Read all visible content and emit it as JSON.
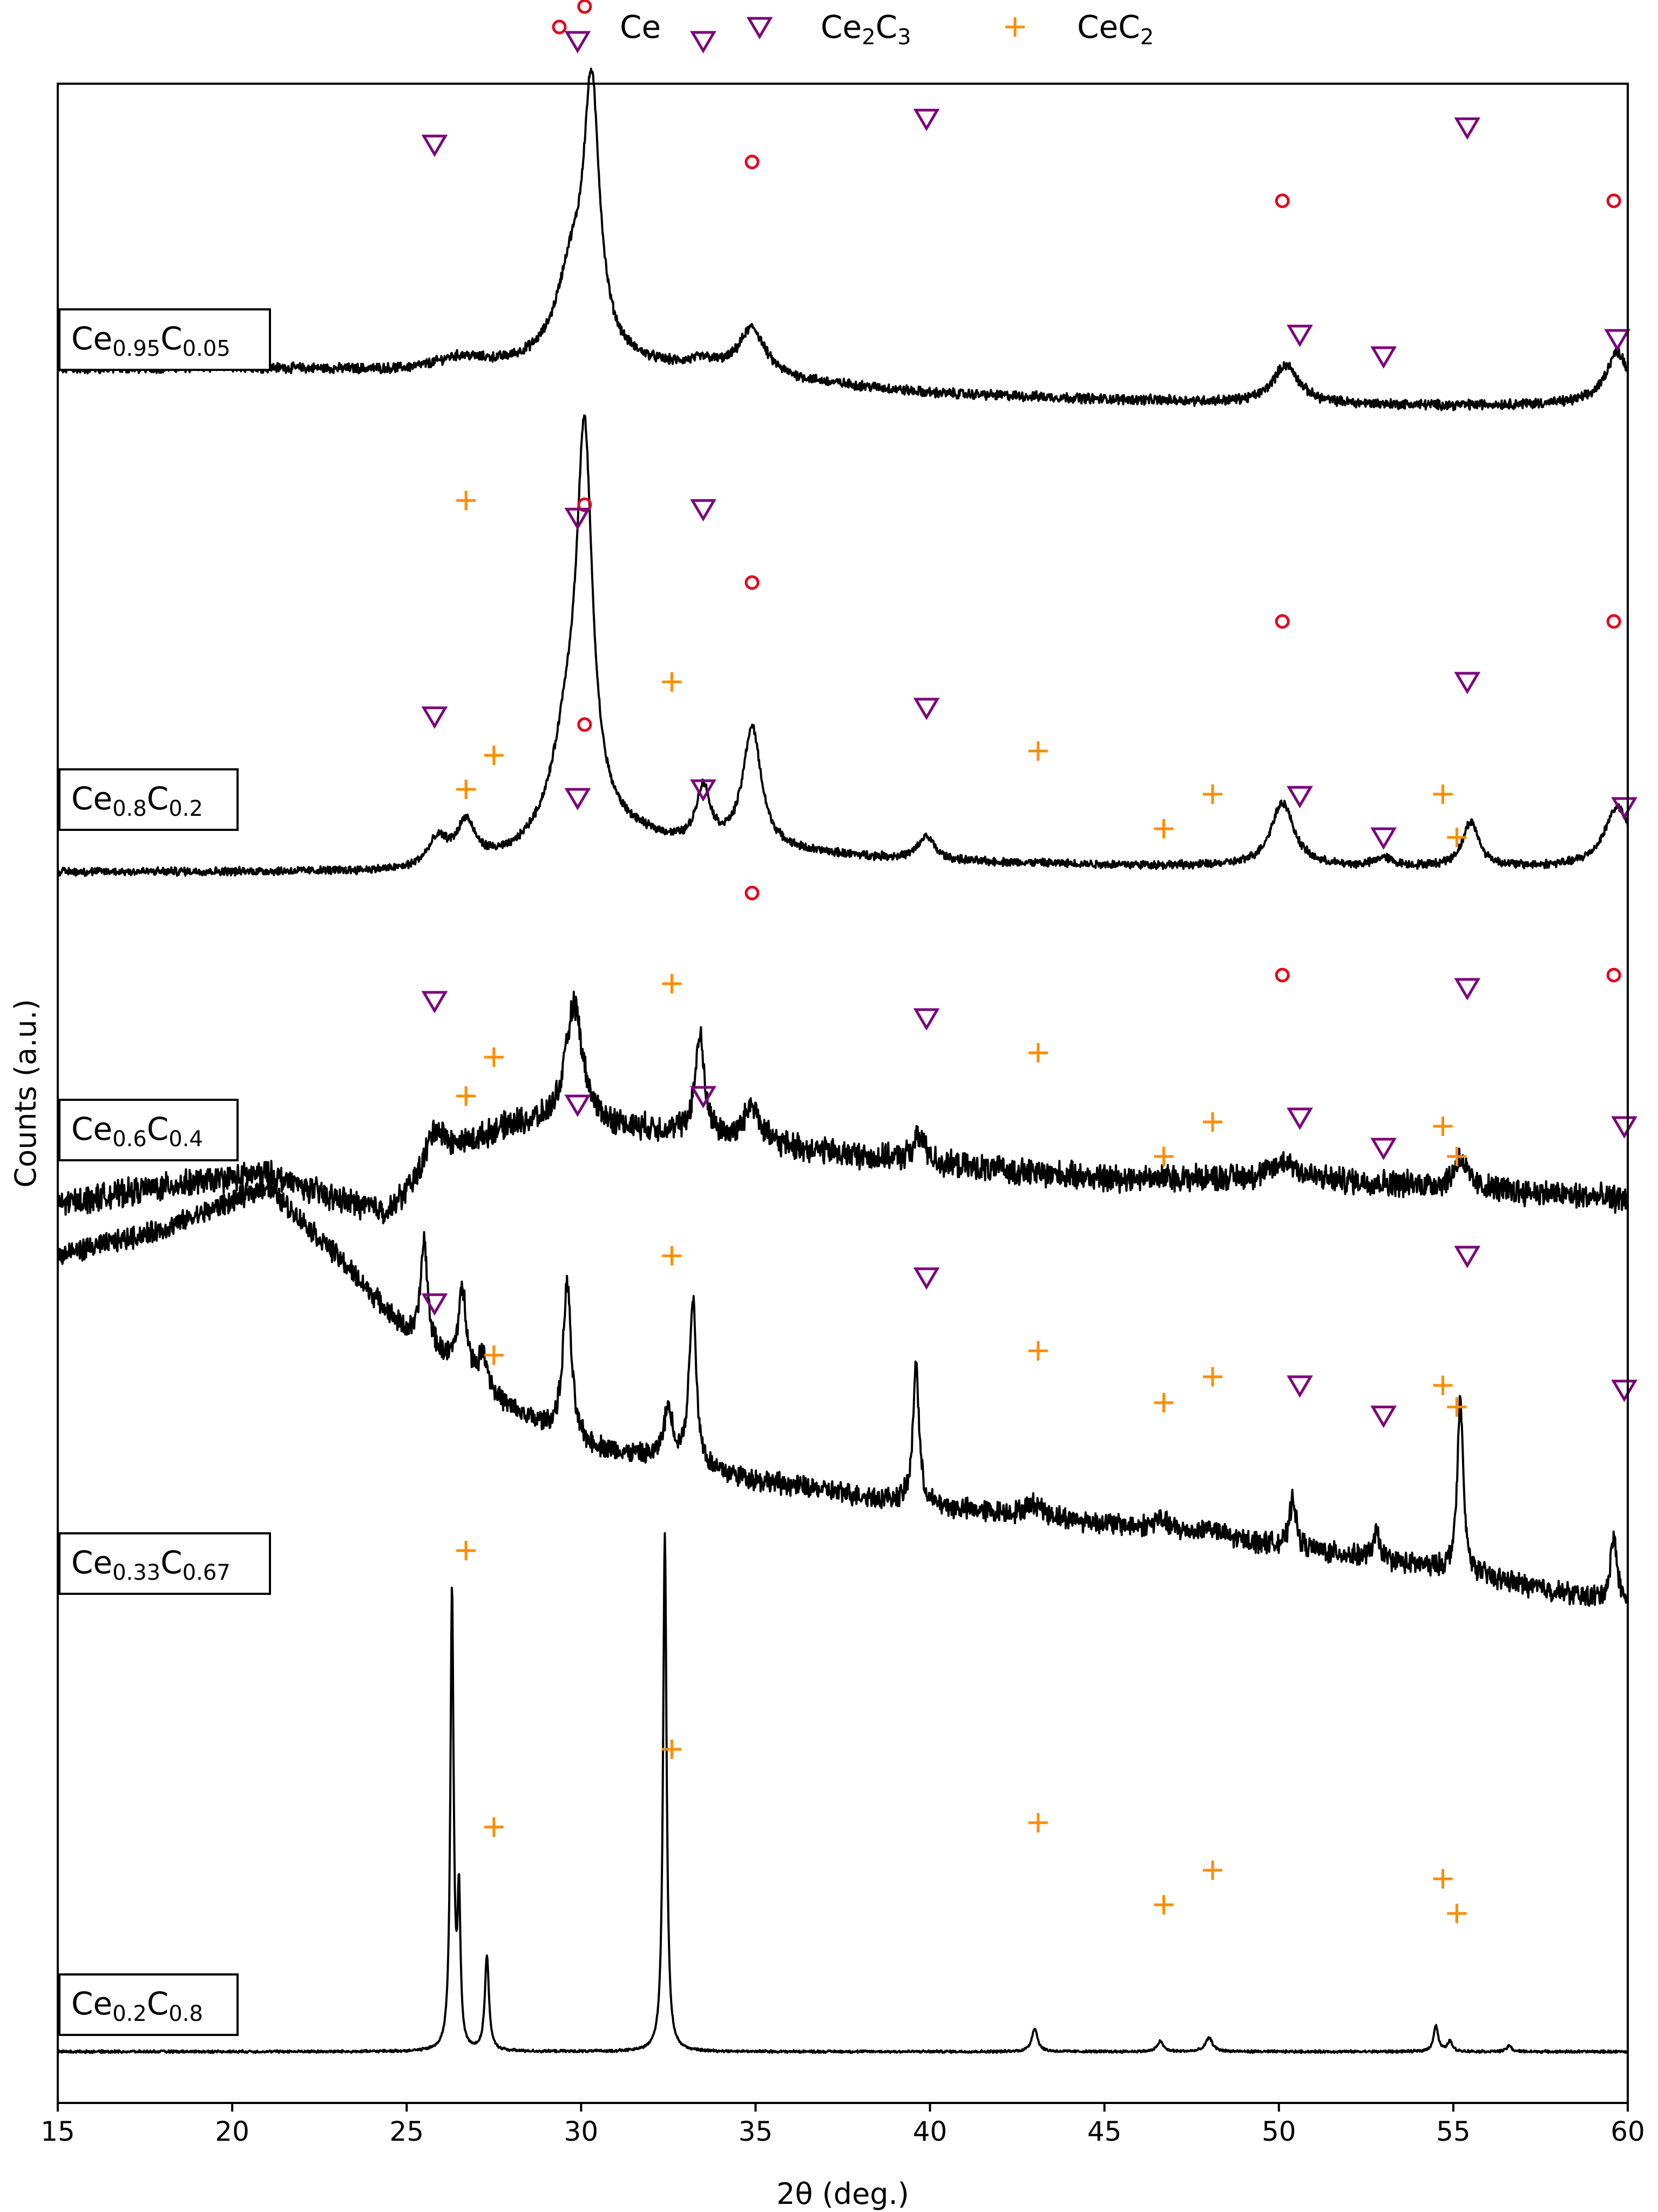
{
  "chart_data": {
    "type": "line",
    "title": "",
    "xlabel": "2θ (deg.)",
    "ylabel": "Counts (a.u.)",
    "xlim": [
      15,
      60
    ],
    "xticks": [
      "15",
      "20",
      "25",
      "30",
      "35",
      "40",
      "45",
      "50",
      "55",
      "60"
    ],
    "yticks": [],
    "legend": {
      "placement": "top-center",
      "entries": [
        {
          "name": "Ce",
          "label_parts": [
            "Ce"
          ],
          "marker": "circle",
          "color": "#e3001b"
        },
        {
          "name": "Ce2C3",
          "label_parts": [
            "Ce",
            "2",
            "C",
            "3"
          ],
          "marker": "triangle-down",
          "color": "#7b007b"
        },
        {
          "name": "CeC2",
          "label_parts": [
            "CeC",
            "2"
          ],
          "marker": "plus",
          "color": "#ff8c00"
        }
      ]
    },
    "colors": {
      "Ce": "#e3001b",
      "Ce2C3": "#7b007b",
      "CeC2": "#ff8c00",
      "trace": "#000000"
    },
    "series": [
      {
        "name": "Ce0.95C0.05",
        "label_parts": [
          "Ce",
          "0.95",
          "C",
          "0.05"
        ],
        "noise": 0.6,
        "baseline": [
          [
            15,
            60
          ],
          [
            20,
            62
          ],
          [
            25,
            58
          ],
          [
            28,
            63
          ],
          [
            30,
            70
          ],
          [
            35,
            50
          ],
          [
            40,
            32
          ],
          [
            45,
            25
          ],
          [
            50,
            20
          ],
          [
            55,
            18
          ],
          [
            60,
            20
          ]
        ],
        "peaks": [
          [
            30.3,
            300,
            0.28
          ],
          [
            29.7,
            90,
            0.5
          ],
          [
            34.9,
            55,
            0.45
          ],
          [
            26.5,
            12,
            0.8
          ],
          [
            50.2,
            45,
            0.45
          ],
          [
            59.7,
            60,
            0.4
          ],
          [
            33.5,
            10,
            0.5
          ]
        ],
        "markers": {
          "Ce": [
            [
              30.1,
              480
            ],
            [
              34.9,
              300
            ],
            [
              50.1,
              255
            ],
            [
              59.6,
              255
            ]
          ],
          "Ce2C3": [
            [
              29.9,
              440
            ],
            [
              33.5,
              440
            ],
            [
              25.8,
              320
            ],
            [
              39.9,
              350
            ],
            [
              55.4,
              340
            ],
            [
              50.6,
              100
            ],
            [
              53.0,
              75
            ],
            [
              59.7,
              95
            ]
          ],
          "CeC2": []
        }
      },
      {
        "name": "Ce0.8C0.2",
        "label_parts": [
          "Ce",
          "0.8",
          "C",
          "0.2"
        ],
        "noise": 0.5,
        "baseline": [
          [
            15,
            0
          ],
          [
            25,
            0
          ],
          [
            28,
            15
          ],
          [
            30,
            55
          ],
          [
            33,
            28
          ],
          [
            36,
            22
          ],
          [
            40,
            12
          ],
          [
            45,
            8
          ],
          [
            50,
            5
          ],
          [
            55,
            5
          ],
          [
            60,
            5
          ]
        ],
        "peaks": [
          [
            30.1,
            420,
            0.27
          ],
          [
            29.6,
            100,
            0.5
          ],
          [
            34.9,
            140,
            0.32
          ],
          [
            33.5,
            65,
            0.25
          ],
          [
            26.7,
            45,
            0.3
          ],
          [
            25.9,
            30,
            0.35
          ],
          [
            39.9,
            28,
            0.28
          ],
          [
            50.1,
            75,
            0.4
          ],
          [
            55.5,
            52,
            0.28
          ],
          [
            59.7,
            70,
            0.45
          ],
          [
            53.0,
            10,
            0.3
          ]
        ],
        "markers": {
          "Ce": [
            [
              30.1,
              425
            ],
            [
              34.9,
              335
            ],
            [
              50.1,
              290
            ],
            [
              59.6,
              290
            ]
          ],
          "Ce2C3": [
            [
              29.9,
              410
            ],
            [
              33.5,
              420
            ],
            [
              25.8,
              180
            ],
            [
              39.9,
              190
            ],
            [
              55.4,
              220
            ],
            [
              50.6,
              88
            ],
            [
              53.0,
              40
            ],
            [
              59.9,
              75
            ]
          ],
          "CeC2": [
            [
              26.7,
              430
            ],
            [
              27.5,
              135
            ],
            [
              32.6,
              220
            ],
            [
              43.1,
              140
            ],
            [
              46.7,
              50
            ],
            [
              48.1,
              90
            ],
            [
              54.7,
              90
            ],
            [
              55.1,
              40
            ]
          ]
        }
      },
      {
        "name": "Ce0.6C0.4",
        "label_parts": [
          "Ce",
          "0.6",
          "C",
          "0.4"
        ],
        "noise": 1.6,
        "baseline": [
          [
            15,
            0
          ],
          [
            18,
            20
          ],
          [
            21,
            35
          ],
          [
            23,
            5
          ],
          [
            24.5,
            -10
          ],
          [
            26,
            55
          ],
          [
            28,
            90
          ],
          [
            30,
            90
          ],
          [
            32,
            85
          ],
          [
            35,
            70
          ],
          [
            40,
            45
          ],
          [
            45,
            30
          ],
          [
            50,
            30
          ],
          [
            55,
            20
          ],
          [
            60,
            5
          ]
        ],
        "peaks": [
          [
            29.8,
            140,
            0.3
          ],
          [
            33.4,
            115,
            0.16
          ],
          [
            34.9,
            45,
            0.25
          ],
          [
            39.7,
            30,
            0.25
          ],
          [
            25.8,
            40,
            0.3
          ],
          [
            55.2,
            35,
            0.2
          ],
          [
            50.2,
            20,
            0.4
          ]
        ],
        "markers": {
          "Ce": [
            [
              30.1,
              555
            ],
            [
              34.9,
              360
            ],
            [
              50.1,
              265
            ],
            [
              59.6,
              265
            ]
          ],
          "Ce2C3": [
            [
              29.9,
              470
            ],
            [
              33.5,
              480
            ],
            [
              25.8,
              235
            ],
            [
              39.9,
              215
            ],
            [
              55.4,
              250
            ],
            [
              50.6,
              100
            ],
            [
              53.0,
              65
            ],
            [
              59.9,
              90
            ]
          ],
          "CeC2": [
            [
              26.7,
              480
            ],
            [
              27.5,
              170
            ],
            [
              32.6,
              255
            ],
            [
              43.1,
              175
            ],
            [
              46.7,
              55
            ],
            [
              48.1,
              95
            ],
            [
              54.7,
              90
            ],
            [
              55.1,
              55
            ]
          ]
        }
      },
      {
        "name": "Ce0.33C0.67",
        "label_parts": [
          "Ce",
          "0.33",
          "C",
          "0.67"
        ],
        "noise": 1.3,
        "baseline": [
          [
            15,
            440
          ],
          [
            18,
            470
          ],
          [
            21,
            520
          ],
          [
            23,
            440
          ],
          [
            25,
            350
          ],
          [
            28,
            260
          ],
          [
            30,
            220
          ],
          [
            35,
            180
          ],
          [
            40,
            150
          ],
          [
            45,
            130
          ],
          [
            50,
            105
          ],
          [
            55,
            75
          ],
          [
            60,
            35
          ]
        ],
        "peaks": [
          [
            25.5,
            120,
            0.12
          ],
          [
            26.6,
            95,
            0.15
          ],
          [
            27.2,
            40,
            0.15
          ],
          [
            29.6,
            180,
            0.14
          ],
          [
            32.5,
            60,
            0.16
          ],
          [
            33.2,
            195,
            0.12
          ],
          [
            39.6,
            165,
            0.1
          ],
          [
            50.4,
            60,
            0.1
          ],
          [
            52.8,
            30,
            0.12
          ],
          [
            55.2,
            200,
            0.1
          ],
          [
            59.6,
            75,
            0.12
          ],
          [
            43.0,
            15,
            0.3
          ],
          [
            46.6,
            12,
            0.3
          ],
          [
            48.0,
            10,
            0.3
          ]
        ],
        "markers": {
          "Ce": [],
          "Ce2C3": [
            [
              29.9,
              615
            ],
            [
              33.5,
              625
            ],
            [
              25.8,
              385
            ],
            [
              39.9,
              415
            ],
            [
              55.4,
              440
            ],
            [
              50.6,
              290
            ],
            [
              53.0,
              255
            ],
            [
              59.9,
              285
            ]
          ],
          "CeC2": [
            [
              26.7,
              625
            ],
            [
              27.5,
              325
            ],
            [
              32.6,
              440
            ],
            [
              43.1,
              330
            ],
            [
              46.7,
              270
            ],
            [
              48.1,
              300
            ],
            [
              54.7,
              290
            ],
            [
              55.1,
              265
            ]
          ]
        }
      },
      {
        "name": "Ce0.2C0.8",
        "label_parts": [
          "Ce",
          "0.2",
          "C",
          "0.8"
        ],
        "noise": 0.15,
        "baseline": [
          [
            15,
            0
          ],
          [
            60,
            0
          ]
        ],
        "peaks": [
          [
            26.3,
            530,
            0.055
          ],
          [
            26.5,
            170,
            0.05
          ],
          [
            27.3,
            110,
            0.07
          ],
          [
            32.4,
            600,
            0.06
          ],
          [
            43.0,
            27,
            0.1
          ],
          [
            46.6,
            12,
            0.1
          ],
          [
            48.0,
            16,
            0.12
          ],
          [
            54.5,
            30,
            0.08
          ],
          [
            54.9,
            12,
            0.08
          ],
          [
            56.6,
            7,
            0.08
          ]
        ],
        "markers": {
          "Ce": [],
          "Ce2C3": [],
          "CeC2": [
            [
              26.7,
              580
            ],
            [
              27.5,
              260
            ],
            [
              32.6,
              350
            ],
            [
              43.1,
              265
            ],
            [
              46.7,
              170
            ],
            [
              48.1,
              210
            ],
            [
              54.7,
              200
            ],
            [
              55.1,
              160
            ]
          ]
        }
      }
    ]
  }
}
